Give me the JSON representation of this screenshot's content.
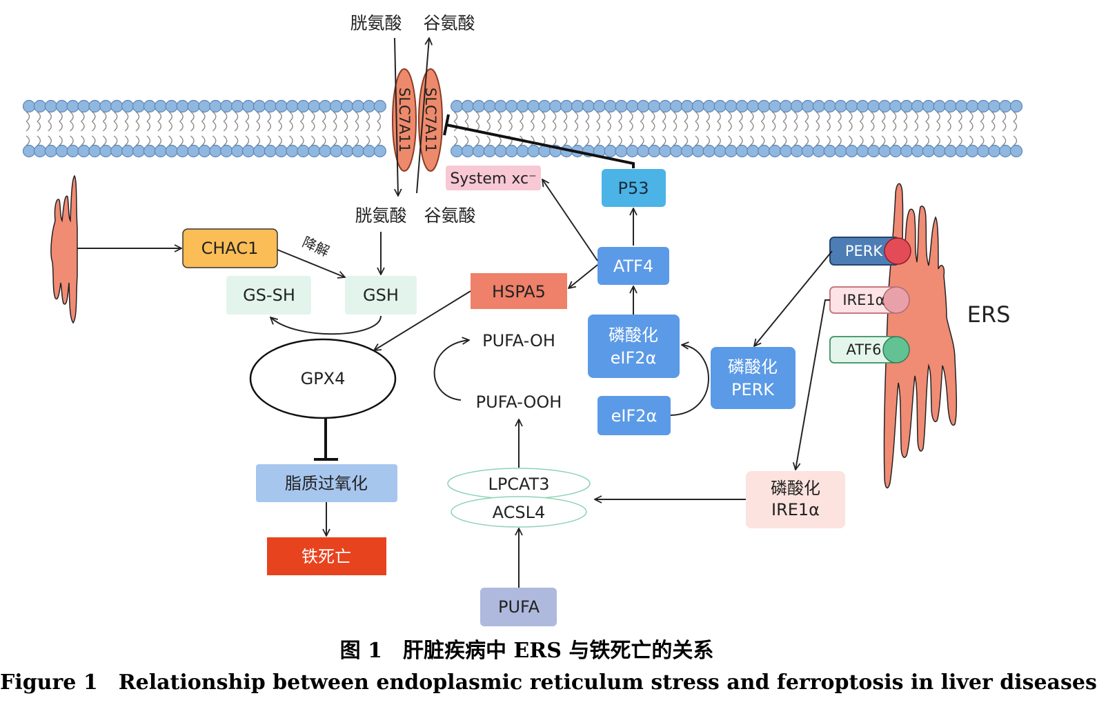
{
  "membrane": {
    "transporter_left": "SLC7A11",
    "transporter_right": "SLC7A11",
    "outside_in": "胱氨酸",
    "outside_out": "谷氨酸",
    "inside_in": "胱氨酸",
    "inside_out": "谷氨酸"
  },
  "nodes": {
    "system_xc": "System xc⁻",
    "p53": "P53",
    "chac1": "CHAC1",
    "degrade": "降解",
    "gs_sh": "GS-SH",
    "gsh": "GSH",
    "hspa5": "HSPA5",
    "atf4": "ATF4",
    "p_eif2a_l1": "磷酸化",
    "p_eif2a_l2": "eIF2α",
    "eif2a": "eIF2α",
    "p_perk_l1": "磷酸化",
    "p_perk_l2": "PERK",
    "gpx4": "GPX4",
    "pufa_oh": "PUFA-OH",
    "pufa_ooh": "PUFA-OOH",
    "lipid_perox": "脂质过氧化",
    "ferroptosis": "铁死亡",
    "lpcat3": "LPCAT3",
    "acsl4": "ACSL4",
    "pufa": "PUFA",
    "p_ire1a_l1": "磷酸化",
    "p_ire1a_l2": "IRE1α"
  },
  "er": {
    "label": "ERS",
    "sensors": [
      "PERK",
      "IRE1α",
      "ATF6"
    ]
  },
  "caption": {
    "zh": "图 1　肝脏疾病中 ERS 与铁死亡的关系",
    "en": "Figure 1　Relationship between endoplasmic reticulum stress and ferroptosis in liver diseases"
  },
  "colors": {
    "membrane_head": "#8fb7e0",
    "membrane_stroke": "#5b86b4",
    "transporter": "#ee8a6c",
    "er": "#f08b74",
    "blue_box": "#5b9ae6",
    "p53_box": "#4bb3e6",
    "chac1_box": "#fbbd56",
    "mint_box": "#e3f4ec",
    "hspa5_box": "#ef8069",
    "xc_box": "#f8c8d4",
    "lipid_box": "#a7c6ee",
    "ferroptosis_box": "#e8431f",
    "pufa_box": "#aeb9dd",
    "ire1a_box": "#fce3df",
    "perk_sensor": "#4d7db5",
    "perk_knob": "#e34b57",
    "ire1a_knob": "#e9a1a9",
    "atf6_knob": "#62c293"
  }
}
